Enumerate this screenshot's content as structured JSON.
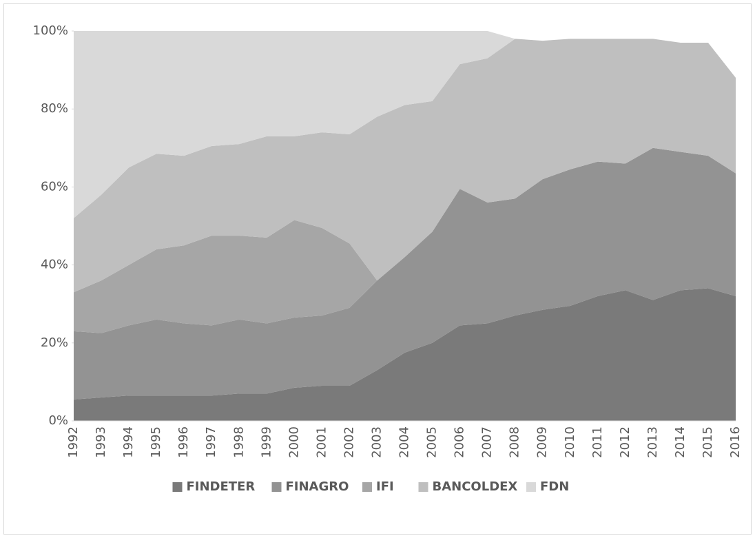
{
  "chart_data": {
    "type": "stacked_area",
    "categories": [
      "1992",
      "1993",
      "1994",
      "1995",
      "1996",
      "1997",
      "1998",
      "1999",
      "2000",
      "2001",
      "2002",
      "2003",
      "2004",
      "2005",
      "2006",
      "2007",
      "2008",
      "2009",
      "2010",
      "2011",
      "2012",
      "2013",
      "2014",
      "2015",
      "2016"
    ],
    "series": [
      {
        "name": "FINDETER",
        "color": "#7a7a7a",
        "values": [
          5.5,
          6,
          6.5,
          6.5,
          6.5,
          6.5,
          7,
          7,
          8.5,
          9,
          9,
          13,
          17.5,
          20,
          24.5,
          25,
          27,
          28.5,
          29.5,
          32,
          33.5,
          31,
          33.5,
          34,
          32
        ]
      },
      {
        "name": "FINAGRO",
        "color": "#939393",
        "values": [
          17.5,
          16.5,
          18,
          19.5,
          18.5,
          18,
          19,
          18,
          18,
          18,
          20,
          23,
          24.5,
          28.5,
          35,
          31,
          30,
          33.5,
          35,
          34.5,
          32.5,
          39,
          35.5,
          34,
          31.5
        ]
      },
      {
        "name": "IFI",
        "color": "#a6a6a6",
        "values": [
          10,
          13.5,
          15.5,
          18,
          20,
          23,
          21.5,
          22,
          25,
          22.5,
          16.5,
          0,
          0,
          0,
          0,
          0,
          0,
          0,
          0,
          0,
          0,
          0,
          0,
          0,
          0
        ]
      },
      {
        "name": "BANCOLDEX",
        "color": "#bfbfbf",
        "values": [
          19,
          22,
          25,
          24.5,
          23,
          23,
          23.5,
          26,
          21.5,
          24.5,
          28,
          42,
          39,
          33.5,
          32,
          37,
          41,
          35.5,
          33.5,
          31.5,
          32,
          28,
          28,
          29,
          24.5
        ]
      },
      {
        "name": "FDN",
        "color": "#d9d9d9",
        "values": [
          48,
          42,
          35,
          31.5,
          32,
          29.5,
          29,
          27,
          27,
          26,
          26.5,
          22,
          19,
          18,
          8.5,
          7,
          0,
          0,
          0,
          0,
          0,
          0,
          0,
          0,
          0
        ]
      }
    ],
    "ylim": [
      0,
      100
    ],
    "yticks": [
      {
        "value": 0,
        "label": "0%"
      },
      {
        "value": 20,
        "label": "20%"
      },
      {
        "value": 40,
        "label": "40%"
      },
      {
        "value": 60,
        "label": "60%"
      },
      {
        "value": 80,
        "label": "80%"
      },
      {
        "value": 100,
        "label": "100%"
      }
    ],
    "legend": "bottom"
  }
}
